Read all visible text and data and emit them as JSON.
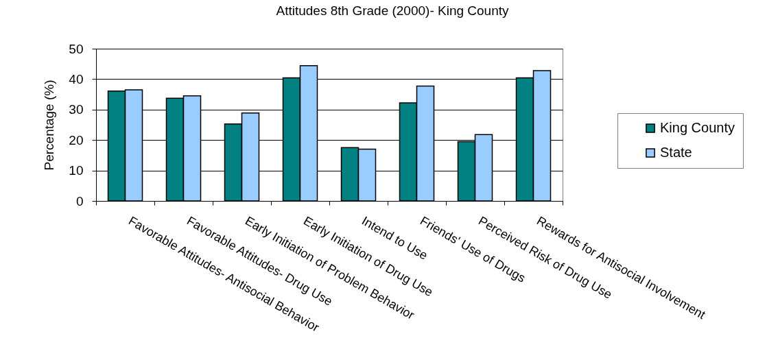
{
  "chart_data": {
    "type": "bar",
    "title": "Attitudes 8th Grade (2000)- King County",
    "ylabel": "Percentage (%)",
    "categories": [
      "Favorable Attitudes- Antisocial Behavior",
      "Favorable Attitudes- Drug Use",
      "Early Initiation of Problem Behavior",
      "Early Initiation of Drug Use",
      "Intend to Use",
      "Friends' Use of Drugs",
      "Perceived Risk of Drug Use",
      "Rewards for Antisocial Involvement"
    ],
    "series": [
      {
        "name": "King County",
        "color": "#008080",
        "values": [
          36.1,
          33.7,
          25.3,
          40.4,
          17.5,
          32.2,
          19.5,
          40.4
        ]
      },
      {
        "name": "State",
        "color": "#99ccff",
        "values": [
          36.5,
          34.5,
          28.9,
          44.4,
          17.0,
          37.7,
          21.8,
          42.8
        ]
      }
    ],
    "ylim": [
      0,
      50
    ],
    "yticks": [
      0,
      10,
      20,
      30,
      40,
      50
    ],
    "grid": "y",
    "legend": "right"
  }
}
